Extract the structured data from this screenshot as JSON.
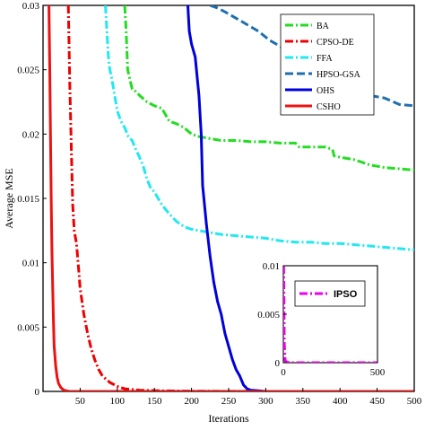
{
  "chart_data": [
    {
      "type": "line",
      "title": "",
      "xlabel": "Iterations",
      "ylabel": "Average MSE",
      "xlim": [
        0,
        500
      ],
      "ylim": [
        0,
        0.03
      ],
      "x_ticks": [
        50,
        100,
        150,
        200,
        250,
        300,
        350,
        400,
        450,
        500
      ],
      "x_tick_labels": [
        "50",
        "100",
        "150",
        "200",
        "250",
        "300",
        "350",
        "400",
        "450",
        "500"
      ],
      "y_ticks": [
        0,
        0.005,
        0.01,
        0.015,
        0.02,
        0.025,
        0.03
      ],
      "y_tick_labels": [
        "0",
        "0.005",
        "0.01",
        "0.015",
        "0.02",
        "0.025",
        "0.03"
      ],
      "grid": false,
      "legend_position": "top-right",
      "series": [
        {
          "name": "BA",
          "color": "#22dd22",
          "dash": "dash-dot",
          "x": [
            110,
            112,
            114,
            118,
            120,
            125,
            130,
            140,
            150,
            160,
            170,
            180,
            190,
            200,
            210,
            220,
            240,
            260,
            280,
            300,
            320,
            340,
            345,
            360,
            380,
            390,
            392,
            400,
            420,
            440,
            460,
            480,
            500
          ],
          "y": [
            0.03,
            0.028,
            0.025,
            0.024,
            0.0235,
            0.0233,
            0.023,
            0.0225,
            0.0222,
            0.022,
            0.021,
            0.0208,
            0.0205,
            0.02,
            0.0198,
            0.0197,
            0.0195,
            0.0195,
            0.0194,
            0.0194,
            0.0193,
            0.0193,
            0.019,
            0.019,
            0.019,
            0.0188,
            0.0183,
            0.0182,
            0.018,
            0.0176,
            0.0174,
            0.0173,
            0.0172
          ]
        },
        {
          "name": "CPSO-DE",
          "color": "#ee0000",
          "dash": "dash-dot",
          "x": [
            34,
            36,
            38,
            40,
            42,
            45,
            48,
            50,
            55,
            60,
            65,
            70,
            75,
            80,
            90,
            100,
            110,
            130,
            160,
            200,
            300,
            400,
            500
          ],
          "y": [
            0.03,
            0.024,
            0.019,
            0.0145,
            0.0125,
            0.0115,
            0.0095,
            0.008,
            0.006,
            0.0045,
            0.0033,
            0.0024,
            0.0017,
            0.0012,
            0.0007,
            0.0004,
            0.0002,
            0.0001,
            5e-05,
            2e-05,
            0.0,
            0.0,
            0.0
          ]
        },
        {
          "name": "FFA",
          "color": "#22e8f0",
          "dash": "dash-dot",
          "x": [
            84,
            86,
            88,
            90,
            92,
            95,
            98,
            100,
            105,
            110,
            115,
            120,
            125,
            130,
            135,
            140,
            145,
            150,
            160,
            170,
            180,
            190,
            200,
            220,
            240,
            260,
            280,
            300,
            320,
            340,
            360,
            380,
            400,
            420,
            440,
            460,
            480,
            500
          ],
          "y": [
            0.03,
            0.028,
            0.026,
            0.025,
            0.0245,
            0.0235,
            0.0225,
            0.0218,
            0.021,
            0.0205,
            0.0198,
            0.0195,
            0.0188,
            0.0182,
            0.0175,
            0.0165,
            0.0158,
            0.0155,
            0.0145,
            0.0138,
            0.0132,
            0.0128,
            0.0126,
            0.0124,
            0.0122,
            0.0121,
            0.012,
            0.0119,
            0.0117,
            0.0116,
            0.0116,
            0.0115,
            0.0115,
            0.0114,
            0.0113,
            0.0112,
            0.0111,
            0.011
          ]
        },
        {
          "name": "HPSO-GSA",
          "color": "#1f6fb0",
          "dash": "dash",
          "x": [
            225,
            235,
            245,
            260,
            275,
            290,
            305,
            320,
            335,
            345,
            360,
            380,
            400,
            420,
            440,
            460,
            480,
            500
          ],
          "y": [
            0.03,
            0.0298,
            0.0295,
            0.029,
            0.0285,
            0.028,
            0.0273,
            0.0268,
            0.0265,
            0.026,
            0.025,
            0.0245,
            0.024,
            0.0235,
            0.023,
            0.0228,
            0.0223,
            0.0222
          ]
        },
        {
          "name": "OHS",
          "color": "#0000dd",
          "dash": "solid",
          "x": [
            195,
            197,
            200,
            205,
            210,
            213,
            215,
            220,
            225,
            230,
            235,
            240,
            245,
            250,
            255,
            260,
            265,
            270,
            275,
            280,
            290,
            300,
            350,
            400,
            450,
            500
          ],
          "y": [
            0.03,
            0.028,
            0.027,
            0.026,
            0.023,
            0.02,
            0.016,
            0.013,
            0.0105,
            0.0085,
            0.007,
            0.006,
            0.0045,
            0.0035,
            0.0025,
            0.0017,
            0.0012,
            0.0005,
            0.0002,
            0.0001,
            5e-05,
            0.0,
            0.0,
            0.0,
            0.0,
            0.0
          ]
        },
        {
          "name": "CSHO",
          "color": "#ee1111",
          "dash": "solid",
          "x": [
            8,
            9,
            10,
            11,
            12,
            13,
            14,
            15,
            17,
            19,
            21,
            24,
            28,
            35,
            50,
            100,
            200,
            300,
            400,
            500
          ],
          "y": [
            0.03,
            0.025,
            0.02,
            0.015,
            0.011,
            0.008,
            0.0055,
            0.0035,
            0.002,
            0.0011,
            0.0006,
            0.0003,
            0.0001,
            0.0,
            0.0,
            0.0,
            0.0,
            0.0,
            0.0,
            0.0
          ]
        }
      ]
    },
    {
      "type": "line",
      "title": "",
      "xlabel": "",
      "ylabel": "",
      "xlim": [
        0,
        500
      ],
      "ylim": [
        0,
        0.01
      ],
      "x_ticks": [
        0,
        500
      ],
      "x_tick_labels": [
        "0",
        "500"
      ],
      "y_ticks": [
        0,
        0.005,
        0.01
      ],
      "y_tick_labels": [
        "0",
        "0.005",
        "0.01"
      ],
      "grid": false,
      "legend_position": "top-right",
      "series": [
        {
          "name": "IPSO",
          "color": "#ee00ee",
          "dash": "dash-dot",
          "x": [
            0,
            2,
            5,
            10,
            20,
            50,
            100,
            200,
            300,
            400,
            500
          ],
          "y": [
            0.01,
            0.0098,
            0.002,
            0.0002,
            5e-05,
            0.0,
            0.0,
            0.0,
            0.0,
            0.0,
            0.0
          ]
        }
      ]
    }
  ]
}
